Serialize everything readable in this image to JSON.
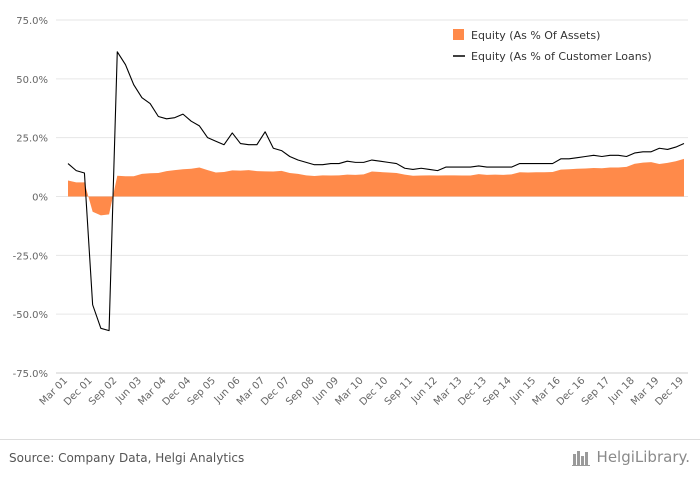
{
  "footer": {
    "source": "Source: Company Data, Helgi Analytics",
    "brand": "HelgiLibrary."
  },
  "chart_data": {
    "type": "area",
    "ylim": [
      -75,
      75
    ],
    "yticks": [
      -75,
      -50,
      -25,
      0,
      25,
      50,
      75
    ],
    "ytick_labels": [
      "-75.0%",
      "-50.0%",
      "-25.0%",
      "0%",
      "25.0%",
      "50.0%",
      "75.0%"
    ],
    "x_labels": [
      "Mar 01",
      "Dec 01",
      "Sep 02",
      "Jun 03",
      "Mar 04",
      "Dec 04",
      "Sep 05",
      "Jun 06",
      "Mar 07",
      "Dec 07",
      "Sep 08",
      "Jun 09",
      "Mar 10",
      "Dec 10",
      "Sep 11",
      "Jun 12",
      "Mar 13",
      "Dec 13",
      "Sep 14",
      "Jun 15",
      "Mar 16",
      "Dec 16",
      "Sep 17",
      "Jun 18",
      "Mar 19",
      "Dec 19"
    ],
    "x_label_interval": 3,
    "grid": true,
    "legend_position": "top-right",
    "series": [
      {
        "name": "Equity (As % Of Assets)",
        "type": "area",
        "color": "#ff8a4a",
        "values": [
          6.8,
          6.0,
          6.0,
          -6.5,
          -8.0,
          -7.6,
          8.8,
          8.6,
          8.6,
          9.6,
          9.9,
          10.0,
          10.8,
          11.2,
          11.6,
          11.8,
          12.3,
          11.2,
          10.2,
          10.4,
          11.1,
          11.0,
          11.2,
          10.8,
          10.7,
          10.6,
          10.9,
          10.0,
          9.6,
          9.0,
          8.7,
          9.0,
          8.9,
          9.0,
          9.3,
          9.2,
          9.4,
          10.6,
          10.4,
          10.2,
          10.0,
          9.3,
          8.8,
          8.9,
          9.0,
          8.9,
          9.0,
          9.0,
          8.9,
          8.9,
          9.5,
          9.2,
          9.3,
          9.2,
          9.4,
          10.3,
          10.2,
          10.3,
          10.3,
          10.4,
          11.4,
          11.6,
          11.8,
          11.9,
          12.1,
          12.0,
          12.3,
          12.3,
          12.6,
          13.9,
          14.4,
          14.6,
          13.8,
          14.3,
          15.0,
          16.0
        ]
      },
      {
        "name": "Equity (As % of Customer Loans)",
        "type": "line",
        "color": "#000000",
        "values": [
          14.0,
          11.0,
          10.0,
          -46.0,
          -56.0,
          -57.0,
          61.5,
          56.0,
          47.5,
          42.0,
          39.5,
          34.0,
          33.0,
          33.5,
          35.0,
          32.0,
          30.0,
          25.0,
          23.5,
          22.0,
          27.0,
          22.5,
          22.0,
          22.0,
          27.5,
          20.5,
          19.5,
          17.0,
          15.5,
          14.5,
          13.5,
          13.5,
          14.0,
          14.0,
          15.0,
          14.5,
          14.5,
          15.5,
          15.0,
          14.5,
          14.0,
          12.0,
          11.5,
          12.0,
          11.5,
          11.0,
          12.5,
          12.5,
          12.5,
          12.5,
          13.0,
          12.5,
          12.5,
          12.5,
          12.5,
          14.0,
          14.0,
          14.0,
          14.0,
          14.0,
          16.0,
          16.0,
          16.5,
          17.0,
          17.5,
          17.0,
          17.5,
          17.5,
          17.0,
          18.5,
          19.0,
          19.0,
          20.5,
          20.0,
          21.0,
          22.5
        ]
      }
    ]
  }
}
